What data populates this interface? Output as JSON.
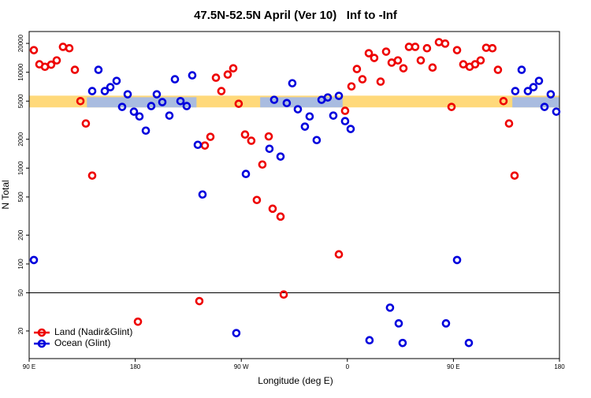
{
  "chart_data": {
    "type": "scatter",
    "title": "47.5N-52.5N April (Ver 10)   Inf to -Inf",
    "x_label": "Longitude (deg E)",
    "y_label": "N Total",
    "xlim": [
      90,
      540
    ],
    "xticks": [
      {
        "value": 90,
        "label": "90 E"
      },
      {
        "value": 180,
        "label": "180"
      },
      {
        "value": 270,
        "label": "90 W"
      },
      {
        "value": 360,
        "label": "0"
      },
      {
        "value": 450,
        "label": "90 E"
      },
      {
        "value": 540,
        "label": "180"
      }
    ],
    "ylim": [
      10.3,
      26600
    ],
    "log_y": true,
    "yticks": [
      20,
      50,
      100,
      200,
      500,
      1000,
      2000,
      5000,
      10000,
      20000
    ],
    "hline": 50,
    "band": {
      "color": "#ffd97a",
      "ylim": [
        4300,
        5700
      ],
      "segment_color": "#a9bce0",
      "segments": [
        [
          139,
          232
        ],
        [
          286,
          356
        ],
        [
          500,
          540
        ]
      ]
    },
    "legend": "bottom-left",
    "series": [
      {
        "name": "Land (Nadir&Glint)",
        "color": "#ee0000",
        "x": [
          94.0,
          98.7,
          103.4,
          108.7,
          113.4,
          118.7,
          124.1,
          128.8,
          133.5,
          138.1,
          143.5,
          182.3,
          234.4,
          239.1,
          243.8,
          248.5,
          253.1,
          258.5,
          263.2,
          267.8,
          273.2,
          278.5,
          283.2,
          287.9,
          293.3,
          296.6,
          303.3,
          306.0,
          352.8,
          358.1,
          363.5,
          368.1,
          372.8,
          378.2,
          382.8,
          388.2,
          392.9,
          397.6,
          402.9,
          407.6,
          412.3,
          417.6,
          422.3,
          427.6,
          432.3,
          437.7,
          443.0,
          448.4,
          453.1,
          458.4,
          463.8,
          468.4,
          473.1,
          477.8,
          483.1,
          487.8,
          492.5,
          497.2,
          501.9
        ],
        "values": [
          17000,
          12100,
          11400,
          12000,
          13300,
          18400,
          17800,
          10600,
          5000,
          2920,
          836,
          25,
          41,
          1720,
          2120,
          8770,
          6360,
          9460,
          11000,
          4690,
          2240,
          1930,
          465,
          1090,
          2140,
          377,
          312,
          48,
          126,
          3960,
          7120,
          10800,
          8450,
          15800,
          14100,
          7980,
          16400,
          12600,
          13300,
          11000,
          18400,
          18400,
          13300,
          17800,
          11200,
          20600,
          19900,
          4350,
          17000,
          12100,
          11400,
          12100,
          13300,
          18000,
          17800,
          10600,
          5000,
          2920,
          836
        ]
      },
      {
        "name": "Ocean (Glint)",
        "color": "#0000dd",
        "x": [
          94.0,
          143.5,
          148.8,
          154.2,
          158.9,
          164.2,
          168.9,
          173.6,
          178.9,
          183.6,
          189.0,
          193.6,
          198.3,
          203.0,
          209.0,
          213.7,
          218.4,
          223.7,
          228.4,
          233.1,
          237.1,
          265.8,
          273.9,
          293.9,
          297.9,
          303.3,
          308.6,
          313.3,
          318.0,
          324.0,
          328.0,
          334.0,
          338.1,
          343.4,
          348.1,
          352.8,
          358.1,
          362.8,
          378.8,
          396.2,
          403.6,
          406.9,
          443.7,
          453.1,
          463.1,
          502.5,
          507.9,
          513.2,
          517.9,
          522.6,
          527.3,
          532.6,
          537.3
        ],
        "values": [
          110,
          6360,
          10600,
          6360,
          6990,
          8130,
          4350,
          5890,
          3880,
          3460,
          2460,
          4440,
          5890,
          4880,
          3530,
          8450,
          5000,
          4440,
          9290,
          1750,
          531,
          19,
          869,
          1590,
          5160,
          1320,
          4770,
          7680,
          4110,
          2710,
          3460,
          1960,
          5160,
          5460,
          3530,
          5670,
          3090,
          2560,
          16,
          35,
          24,
          15,
          24,
          110,
          15,
          6360,
          10600,
          6360,
          6990,
          8130,
          4350,
          5890,
          3880
        ]
      }
    ]
  }
}
